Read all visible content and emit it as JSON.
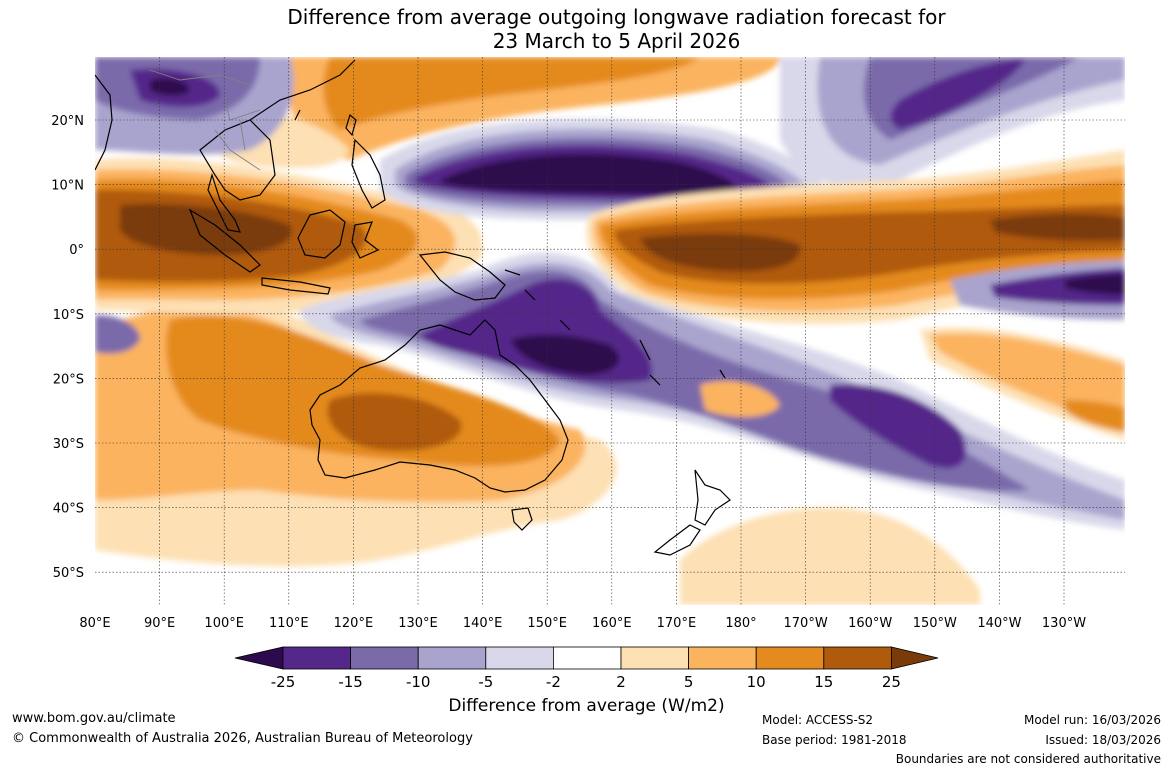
{
  "title": {
    "line1": "Difference from average outgoing longwave radiation forecast for",
    "line2": "23 March to 5 April 2026"
  },
  "map": {
    "lat_labels": [
      "20°N",
      "10°N",
      "0°",
      "10°S",
      "20°S",
      "30°S",
      "40°S",
      "50°S"
    ],
    "lon_labels": [
      "80°E",
      "90°E",
      "100°E",
      "110°E",
      "120°E",
      "130°E",
      "140°E",
      "150°E",
      "160°E",
      "170°E",
      "180°",
      "170°W",
      "160°W",
      "150°W",
      "140°W",
      "130°W"
    ],
    "region": "Indo-Pacific, Australia, New Zealand"
  },
  "colorbar": {
    "ticks": [
      "-25",
      "-15",
      "-10",
      "-5",
      "-2",
      "2",
      "5",
      "10",
      "15",
      "25"
    ],
    "colors": [
      "#2d0a4e",
      "#55278a",
      "#7a6aaa",
      "#a9a4ce",
      "#d8d8ea",
      "#ffffff",
      "#fde0b4",
      "#fbb35e",
      "#e48a1e",
      "#b05a0c",
      "#7a3a0a"
    ],
    "label": "Difference from average (W/m2)"
  },
  "footer": {
    "website": "www.bom.gov.au/climate",
    "copyright": "© Commonwealth of Australia 2026, Australian Bureau of Meteorology",
    "model": "Model: ACCESS-S2",
    "base_period": "Base period: 1981-2018",
    "model_run": "Model run: 16/03/2026",
    "issued": "Issued: 18/03/2026",
    "disclaimer": "Boundaries are not considered authoritative"
  }
}
